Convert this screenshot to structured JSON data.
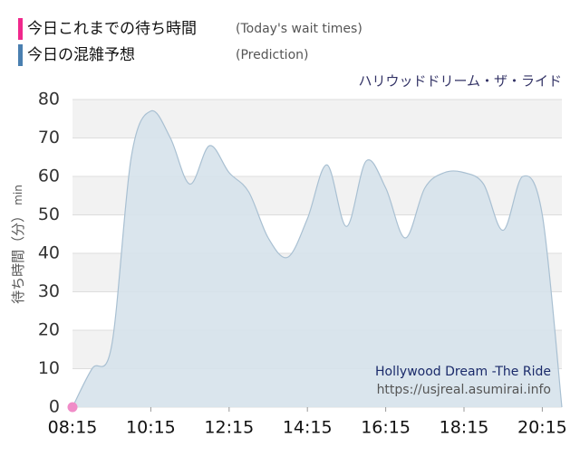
{
  "chart_data": {
    "type": "area",
    "title": "ハリウッドドリーム・ザ・ライド",
    "ylabel": "待ち時間（分）",
    "yunit": "min",
    "annotations": [
      "Hollywood Dream -The Ride",
      "https://usjreal.asumirai.info"
    ],
    "ylim": [
      0,
      80
    ],
    "yticks": [
      0,
      10,
      20,
      30,
      40,
      50,
      60,
      70,
      80
    ],
    "xlim": [
      "08:15",
      "20:45"
    ],
    "xticks": [
      "08:15",
      "10:15",
      "12:15",
      "14:15",
      "16:15",
      "18:15",
      "20:15"
    ],
    "grid": true,
    "series": [
      {
        "name": "今日これまでの待ち時間",
        "label_en": "(Today's wait times)",
        "color": "#f0288c",
        "marker_color": "#f08cc8",
        "x": [
          "08:15"
        ],
        "values": [
          0
        ]
      },
      {
        "name": "今日の混雑予想",
        "label_en": "(Prediction)",
        "color": "#4a7fb0",
        "fill_color": "#d6e2eb",
        "line_color": "#a9c0d2",
        "x": [
          "08:15",
          "08:45",
          "09:15",
          "09:45",
          "10:15",
          "10:45",
          "11:15",
          "11:45",
          "12:15",
          "12:45",
          "13:15",
          "13:45",
          "14:15",
          "14:45",
          "15:15",
          "15:45",
          "16:15",
          "16:45",
          "17:15",
          "17:45",
          "18:15",
          "18:45",
          "19:15",
          "19:45",
          "20:15",
          "20:45"
        ],
        "values": [
          0,
          10,
          16,
          65,
          77,
          70,
          58,
          68,
          61,
          56,
          44,
          39,
          49,
          63,
          47,
          64,
          57,
          44,
          57,
          61,
          61,
          58,
          46,
          60,
          50,
          0
        ]
      }
    ]
  }
}
